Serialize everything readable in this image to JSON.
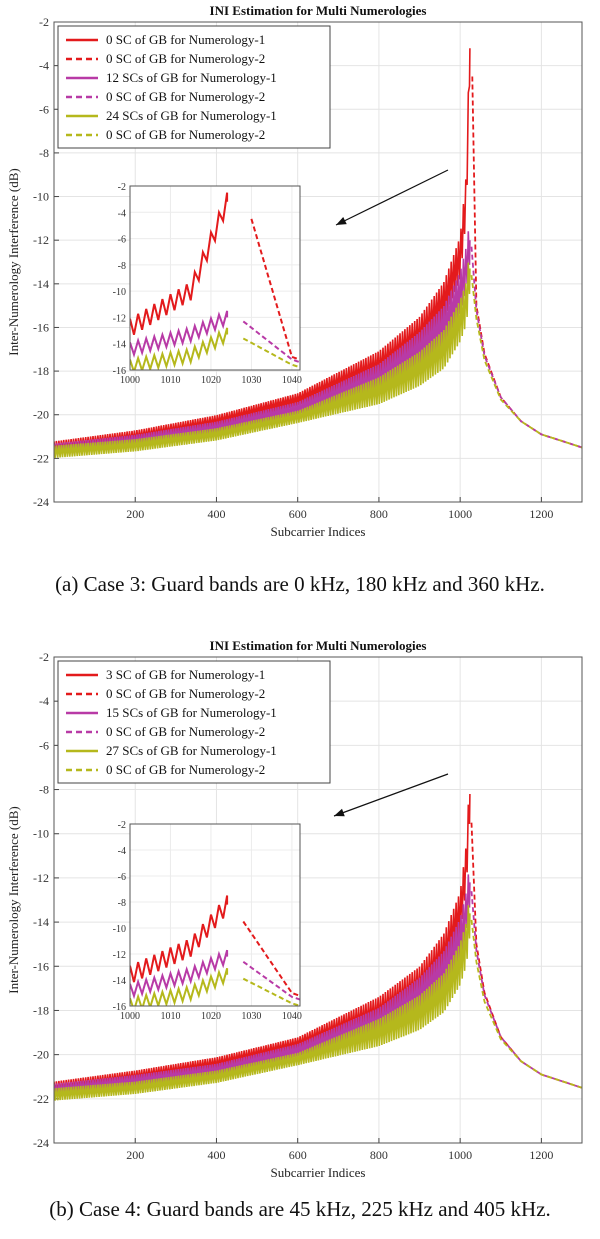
{
  "chart_data": [
    {
      "type": "line",
      "title": "INI Estimation for Multi Numerologies",
      "xlabel": "Subcarrier Indices",
      "ylabel": "Inter-Numerology Interference (dB)",
      "xlim": [
        0,
        1300
      ],
      "ylim": [
        -24,
        -2
      ],
      "xticks": [
        "200",
        "400",
        "600",
        "800",
        "1000",
        "1200"
      ],
      "yticks": [
        "-24",
        "-22",
        "-20",
        "-18",
        "-16",
        "-14",
        "-12",
        "-10",
        "-8",
        "-6",
        "-4",
        "-2"
      ],
      "grid": true,
      "legend_position": "top-left",
      "series": [
        {
          "name": "0 SC of GB for Numerology-1",
          "color": "#e31a1c",
          "dash": "solid",
          "x": [
            0,
            200,
            400,
            600,
            800,
            900,
            960,
            1000,
            1015,
            1024
          ],
          "y": [
            -21.5,
            -21.0,
            -20.3,
            -19.3,
            -17.7,
            -16.3,
            -14.8,
            -12.8,
            -10.0,
            -3.2
          ]
        },
        {
          "name": "0 SC of GB for Numerology-2",
          "color": "#e31a1c",
          "dash": "dashed",
          "x": [
            1030,
            1040,
            1060,
            1100,
            1150,
            1200,
            1250,
            1300
          ],
          "y": [
            -4.5,
            -15.0,
            -17.2,
            -19.2,
            -20.3,
            -20.9,
            -21.2,
            -21.5
          ]
        },
        {
          "name": "12 SCs of GB for Numerology-1",
          "color": "#b83aa6",
          "dash": "solid",
          "x": [
            0,
            200,
            400,
            600,
            800,
            900,
            960,
            1000,
            1015,
            1024
          ],
          "y": [
            -21.6,
            -21.2,
            -20.6,
            -19.7,
            -18.3,
            -17.0,
            -15.9,
            -14.4,
            -13.3,
            -12.0
          ]
        },
        {
          "name": "0 SC of GB for Numerology-2",
          "color": "#b83aa6",
          "dash": "dashed",
          "x": [
            1028,
            1040,
            1060,
            1100,
            1150,
            1200,
            1250,
            1300
          ],
          "y": [
            -12.3,
            -15.2,
            -17.3,
            -19.2,
            -20.3,
            -20.9,
            -21.2,
            -21.5
          ]
        },
        {
          "name": "24 SCs of GB for Numerology-1",
          "color": "#b5b81c",
          "dash": "solid",
          "x": [
            0,
            200,
            400,
            600,
            800,
            900,
            960,
            1000,
            1015,
            1024
          ],
          "y": [
            -21.7,
            -21.4,
            -20.9,
            -20.1,
            -18.9,
            -17.9,
            -17.0,
            -15.7,
            -14.9,
            -13.3
          ]
        },
        {
          "name": "0 SC of GB for Numerology-2",
          "color": "#b5b81c",
          "dash": "dashed",
          "x": [
            1028,
            1040,
            1060,
            1100,
            1150,
            1200,
            1250,
            1300
          ],
          "y": [
            -13.6,
            -15.6,
            -17.5,
            -19.3,
            -20.3,
            -20.9,
            -21.2,
            -21.5
          ]
        }
      ],
      "inset": {
        "xlim": [
          1000,
          1042
        ],
        "ylim": [
          -16,
          -2
        ],
        "xticks": [
          "1000",
          "1010",
          "1020",
          "1030",
          "1040"
        ],
        "yticks": [
          "-16",
          "-14",
          "-12",
          "-10",
          "-8",
          "-6",
          "-4",
          "-2"
        ]
      },
      "caption": "(a)  Case 3: Guard bands are 0 kHz, 180 kHz and 360 kHz."
    },
    {
      "type": "line",
      "title": "INI Estimation for Multi Numerologies",
      "xlabel": "Subcarrier Indices",
      "ylabel": "Inter-Numerology Interference (dB)",
      "xlim": [
        0,
        1300
      ],
      "ylim": [
        -24,
        -2
      ],
      "xticks": [
        "200",
        "400",
        "600",
        "800",
        "1000",
        "1200"
      ],
      "yticks": [
        "-24",
        "-22",
        "-20",
        "-18",
        "-16",
        "-14",
        "-12",
        "-10",
        "-8",
        "-6",
        "-4",
        "-2"
      ],
      "grid": true,
      "legend_position": "top-left",
      "series": [
        {
          "name": "3 SC of GB for Numerology-1",
          "color": "#e31a1c",
          "dash": "solid",
          "x": [
            0,
            200,
            400,
            600,
            800,
            900,
            960,
            1000,
            1015,
            1024
          ],
          "y": [
            -21.5,
            -21.0,
            -20.4,
            -19.5,
            -18.0,
            -16.8,
            -15.4,
            -13.6,
            -11.5,
            -8.2
          ]
        },
        {
          "name": "0 SC of GB for Numerology-2",
          "color": "#e31a1c",
          "dash": "dashed",
          "x": [
            1028,
            1040,
            1060,
            1100,
            1150,
            1200,
            1250,
            1300
          ],
          "y": [
            -9.5,
            -15.0,
            -17.2,
            -19.2,
            -20.3,
            -20.9,
            -21.2,
            -21.5
          ]
        },
        {
          "name": "15 SCs of GB for Numerology-1",
          "color": "#b83aa6",
          "dash": "solid",
          "x": [
            0,
            200,
            400,
            600,
            800,
            900,
            960,
            1000,
            1015,
            1024
          ],
          "y": [
            -21.6,
            -21.2,
            -20.7,
            -19.8,
            -18.5,
            -17.3,
            -16.2,
            -14.8,
            -13.6,
            -12.2
          ]
        },
        {
          "name": "0 SC of GB for Numerology-2",
          "color": "#b83aa6",
          "dash": "dashed",
          "x": [
            1028,
            1040,
            1060,
            1100,
            1150,
            1200,
            1250,
            1300
          ],
          "y": [
            -12.6,
            -15.3,
            -17.3,
            -19.2,
            -20.3,
            -20.9,
            -21.2,
            -21.5
          ]
        },
        {
          "name": "27 SCs of GB for Numerology-1",
          "color": "#b5b81c",
          "dash": "solid",
          "x": [
            0,
            200,
            400,
            600,
            800,
            900,
            960,
            1000,
            1015,
            1024
          ],
          "y": [
            -21.8,
            -21.5,
            -21.0,
            -20.2,
            -19.0,
            -18.1,
            -17.2,
            -15.9,
            -15.0,
            -13.6
          ]
        },
        {
          "name": "0 SC of GB for Numerology-2",
          "color": "#b5b81c",
          "dash": "dashed",
          "x": [
            1028,
            1040,
            1060,
            1100,
            1150,
            1200,
            1250,
            1300
          ],
          "y": [
            -13.9,
            -15.8,
            -17.6,
            -19.3,
            -20.3,
            -20.9,
            -21.2,
            -21.5
          ]
        }
      ],
      "inset": {
        "xlim": [
          1000,
          1042
        ],
        "ylim": [
          -16,
          -2
        ],
        "xticks": [
          "1000",
          "1010",
          "1020",
          "1030",
          "1040"
        ],
        "yticks": [
          "-16",
          "-14",
          "-12",
          "-10",
          "-8",
          "-6",
          "-4",
          "-2"
        ]
      },
      "caption": "(b)  Case 4: Guard bands are 45 kHz, 225 kHz and 405 kHz."
    }
  ]
}
